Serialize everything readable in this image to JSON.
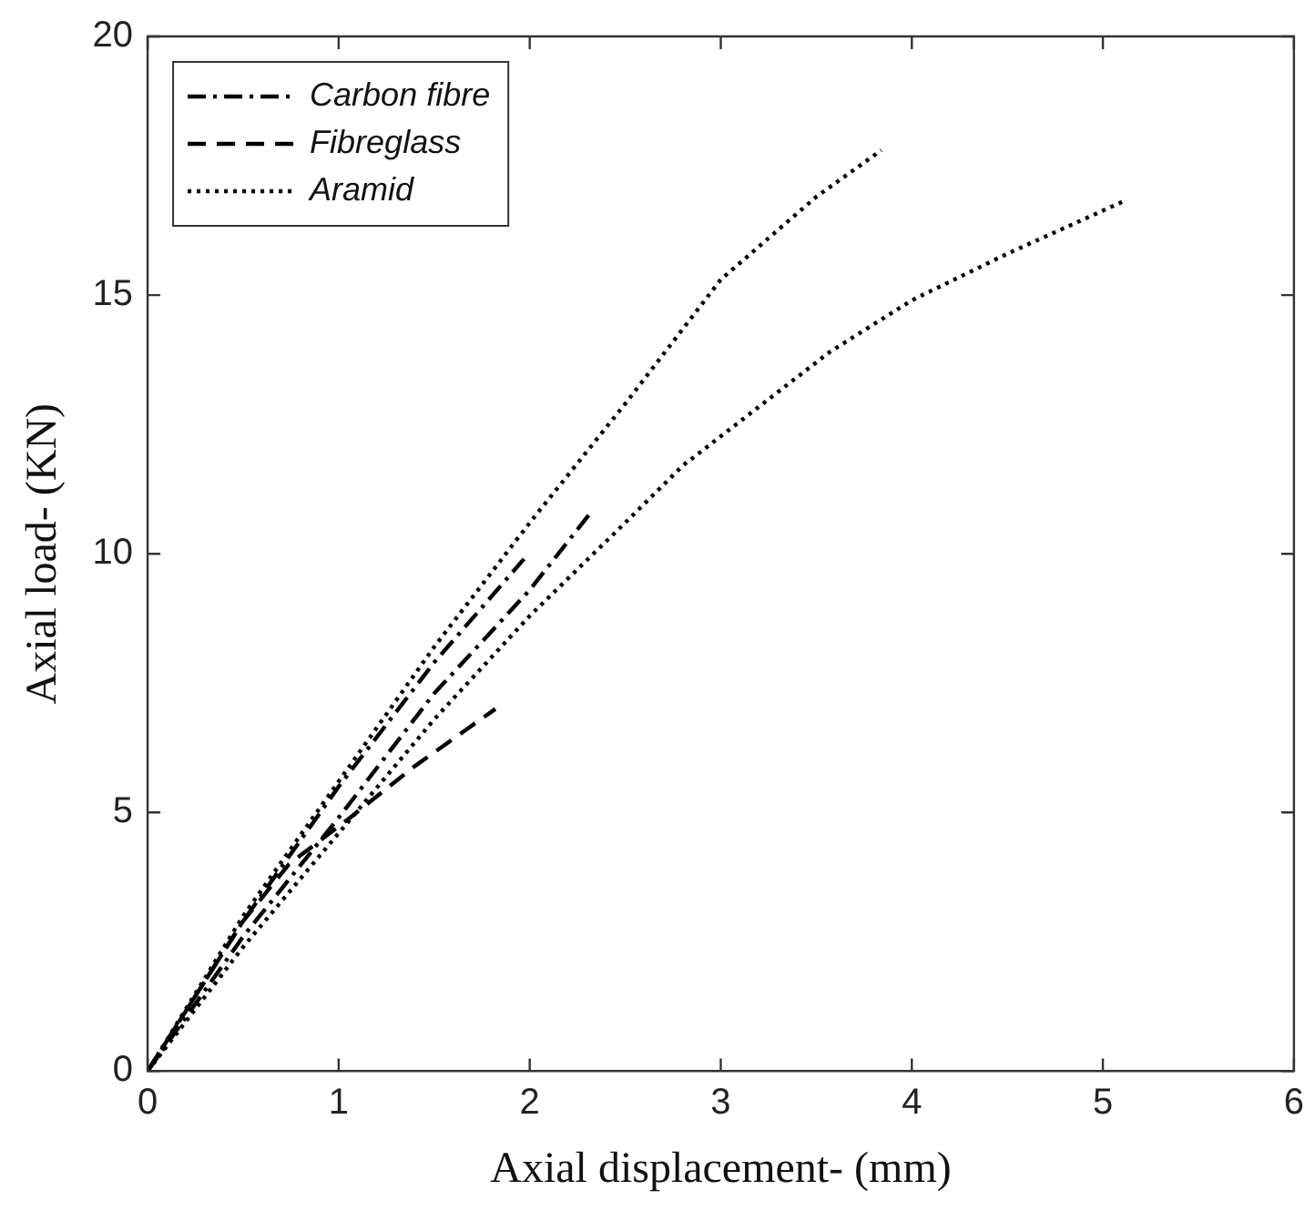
{
  "chart_data": {
    "type": "line",
    "xlabel": "Axial displacement- (mm)",
    "ylabel": "Axial load- (KN)",
    "xlim": [
      0,
      6
    ],
    "xticks": [
      0,
      1,
      2,
      3,
      4,
      5,
      6
    ],
    "ylim": [
      0,
      20
    ],
    "yticks": [
      0,
      5,
      10,
      15,
      20
    ],
    "grid": false,
    "legend": "top left",
    "marker": "none",
    "series": [
      {
        "name": "Carbon fibre",
        "color": "#000000",
        "line_style": "dashdot",
        "x": [
          0,
          0.5,
          1,
          1.5,
          2,
          2.32
        ],
        "values": [
          0,
          2.6,
          4.9,
          7.3,
          9.3,
          10.8
        ]
      },
      {
        "color": "#000000",
        "line_style": "dashdot",
        "x": [
          0,
          0.5,
          1,
          1.5,
          1.97
        ],
        "values": [
          0,
          2.9,
          5.5,
          7.9,
          9.9
        ]
      },
      {
        "name": "Fibreglass",
        "color": "#000000",
        "line_style": "dashed",
        "x": [
          0,
          0.5,
          0.74,
          1.06,
          1.4,
          1.82
        ],
        "values": [
          0,
          2.9,
          4.0,
          4.9,
          5.9,
          7.0
        ]
      },
      {
        "name": "Aramid",
        "color": "#000000",
        "line_style": "dotted",
        "x": [
          0,
          0.5,
          1,
          1.5,
          2,
          2.5,
          3,
          3.5,
          3.84
        ],
        "values": [
          0,
          3.0,
          5.6,
          8.2,
          10.6,
          12.9,
          15.3,
          16.9,
          17.8
        ]
      },
      {
        "color": "#000000",
        "line_style": "dotted",
        "x": [
          0,
          0.5,
          1,
          1.5,
          2,
          2.5,
          2.8,
          3.57,
          4,
          4.5,
          5.1
        ],
        "values": [
          0,
          2.4,
          4.6,
          6.8,
          8.8,
          10.6,
          11.7,
          13.9,
          14.9,
          15.8,
          16.8
        ]
      }
    ]
  }
}
